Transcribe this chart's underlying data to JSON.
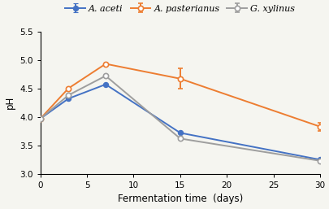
{
  "x": [
    0,
    3,
    7,
    15,
    30
  ],
  "a_aceti": [
    3.97,
    4.32,
    4.57,
    3.72,
    3.25
  ],
  "a_pasterianus": [
    3.97,
    4.5,
    4.93,
    4.67,
    3.83
  ],
  "g_xylinus": [
    3.97,
    4.38,
    4.72,
    3.62,
    3.23
  ],
  "a_aceti_err": [
    0,
    0,
    0,
    0,
    0
  ],
  "a_pasterianus_err": [
    0,
    0,
    0,
    0.18,
    0.07
  ],
  "g_xylinus_err": [
    0,
    0,
    0,
    0,
    0
  ],
  "color_aceti": "#4472C4",
  "color_pasterianus": "#ED7D31",
  "color_xylinus": "#9E9E9E",
  "xlabel": "Fermentation time  (days)",
  "ylabel": "pH",
  "ylim": [
    3.0,
    5.5
  ],
  "yticks": [
    3.0,
    3.5,
    4.0,
    4.5,
    5.0,
    5.5
  ],
  "xlim": [
    0,
    30
  ],
  "xticks": [
    0,
    5,
    10,
    15,
    20,
    25,
    30
  ],
  "legend_aceti": "A. aceti",
  "legend_pasterianus": "A. pasterianus",
  "legend_xylinus": "G. xylinus",
  "axis_fontsize": 8.5,
  "tick_fontsize": 7.5,
  "legend_fontsize": 8,
  "linewidth": 1.4,
  "markersize": 4.5,
  "capsize": 2.5,
  "bg_color": "#F5F5F0"
}
